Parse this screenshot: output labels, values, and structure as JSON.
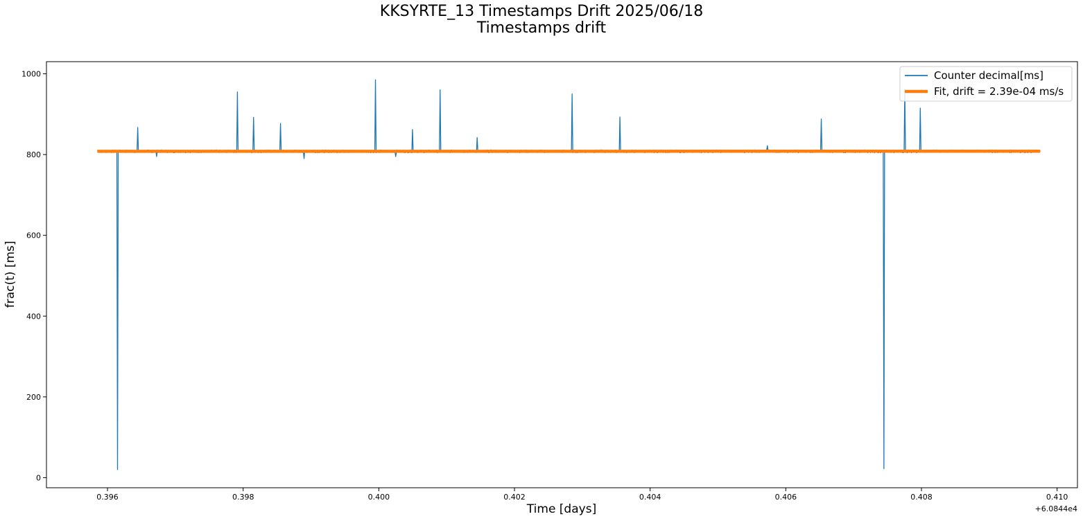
{
  "chart_data": {
    "type": "line",
    "title": "KKSYRTE_13 Timestamps Drift 2025/06/18",
    "subtitle": "Timestamps drift",
    "xlabel": "Time [days]",
    "ylabel": "frac(t) [ms]",
    "x_offset_label": "+6.0844e4",
    "xlim": [
      0.3951,
      0.4103
    ],
    "ylim": [
      -25,
      1030
    ],
    "x_ticks": [
      0.396,
      0.398,
      0.4,
      0.402,
      0.404,
      0.406,
      0.408,
      0.41
    ],
    "x_tick_labels": [
      "0.396",
      "0.398",
      "0.400",
      "0.402",
      "0.404",
      "0.406",
      "0.408",
      "0.410"
    ],
    "y_ticks": [
      0,
      200,
      400,
      600,
      800,
      1000
    ],
    "y_tick_labels": [
      "0",
      "200",
      "400",
      "600",
      "800",
      "1000"
    ],
    "grid": false,
    "legend_position": "top-right",
    "series": [
      {
        "name": "Counter decimal[ms]",
        "color": "#1f77b4",
        "baseline": 808,
        "x_range": [
          0.39585,
          0.40975
        ],
        "events": [
          {
            "x": 0.39615,
            "y": 20
          },
          {
            "x": 0.39645,
            "y": 867
          },
          {
            "x": 0.39672,
            "y": 795
          },
          {
            "x": 0.39792,
            "y": 955
          },
          {
            "x": 0.39815,
            "y": 892
          },
          {
            "x": 0.39855,
            "y": 877
          },
          {
            "x": 0.3989,
            "y": 790
          },
          {
            "x": 0.39995,
            "y": 985
          },
          {
            "x": 0.40025,
            "y": 795
          },
          {
            "x": 0.4005,
            "y": 862
          },
          {
            "x": 0.4009,
            "y": 960
          },
          {
            "x": 0.40145,
            "y": 842
          },
          {
            "x": 0.40285,
            "y": 950
          },
          {
            "x": 0.40355,
            "y": 893
          },
          {
            "x": 0.40573,
            "y": 822
          },
          {
            "x": 0.40652,
            "y": 888
          },
          {
            "x": 0.40745,
            "y": 22
          },
          {
            "x": 0.40775,
            "y": 962
          },
          {
            "x": 0.40798,
            "y": 915
          }
        ]
      },
      {
        "name": "Fit, drift = 2.39e-04 ms/s",
        "color": "#ff7f0e",
        "x": [
          0.39585,
          0.40975
        ],
        "y": [
          808,
          808.3
        ]
      }
    ]
  }
}
